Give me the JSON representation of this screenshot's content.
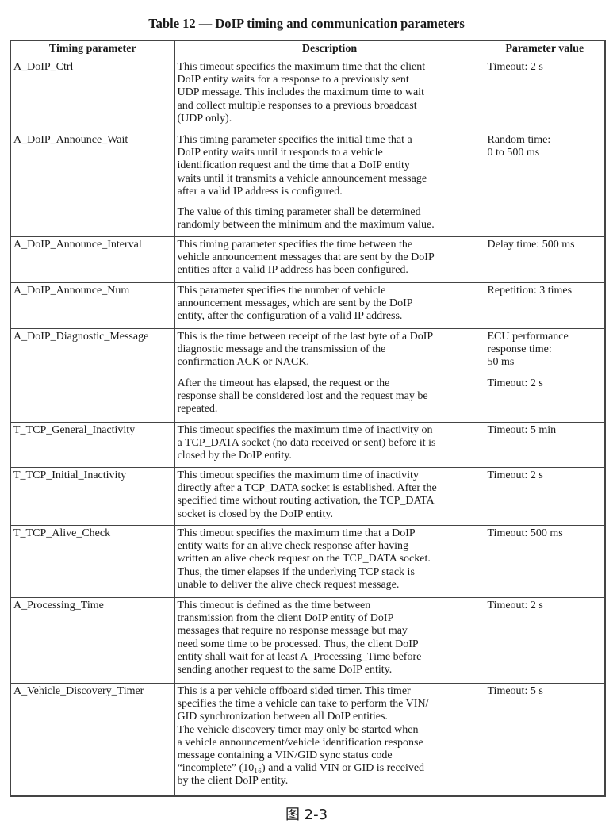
{
  "title": "Table 12 — DoIP timing and communication parameters",
  "headers": [
    "Timing parameter",
    "Description",
    "Parameter value"
  ],
  "rows": [
    {
      "param": "A_DoIP_Ctrl",
      "desc": [
        [
          "This timeout specifies the maximum time that the client",
          "DoIP entity waits for a response to a previously sent",
          "UDP message. This includes the maximum time to wait",
          "and collect multiple responses to a previous broadcast",
          "(UDP only)."
        ]
      ],
      "value": [
        [
          "Timeout: 2 s"
        ]
      ]
    },
    {
      "param": "A_DoIP_Announce_Wait",
      "desc": [
        [
          "This timing parameter specifies the initial time that a",
          "DoIP entity waits until it responds to a vehicle",
          "identification request and the time that a DoIP entity",
          "waits until it transmits a vehicle announcement message",
          "after a valid IP address is configured."
        ],
        [
          "The value of this timing parameter shall be determined",
          "randomly between the minimum and the maximum value."
        ]
      ],
      "value": [
        [
          "Random time:",
          "0 to 500 ms"
        ]
      ]
    },
    {
      "param": "A_DoIP_Announce_Interval",
      "desc": [
        [
          "This timing parameter specifies the time between the",
          "vehicle announcement messages that are sent by the DoIP",
          "entities after a valid IP address has been configured."
        ]
      ],
      "value": [
        [
          "Delay time: 500 ms"
        ]
      ]
    },
    {
      "param": "A_DoIP_Announce_Num",
      "desc": [
        [
          "This parameter specifies the number of vehicle",
          "announcement messages, which are sent by the DoIP",
          "entity, after the configuration of a valid IP address."
        ]
      ],
      "value": [
        [
          "Repetition: 3 times"
        ]
      ]
    },
    {
      "param": "A_DoIP_Diagnostic_Message",
      "desc": [
        [
          "This is the time between receipt of the last byte of a DoIP",
          "diagnostic message and the transmission of the",
          "confirmation ACK or NACK."
        ],
        [
          "After the timeout has elapsed, the request or the",
          "response shall be considered lost and the request may be",
          "repeated."
        ]
      ],
      "value": [
        [
          "ECU performance",
          "response time:",
          "50 ms"
        ],
        [
          "Timeout: 2 s"
        ]
      ]
    },
    {
      "param": "T_TCP_General_Inactivity",
      "desc": [
        [
          "This timeout specifies the maximum time of inactivity on",
          "a TCP_DATA socket (no data received or sent) before it is",
          "closed by the DoIP entity."
        ]
      ],
      "value": [
        [
          "Timeout: 5 min"
        ]
      ]
    },
    {
      "param": "T_TCP_Initial_Inactivity",
      "desc": [
        [
          "This timeout specifies the maximum time of inactivity",
          "directly after a TCP_DATA socket is established. After the",
          "specified time without routing activation, the TCP_DATA",
          "socket is closed by the DoIP entity."
        ]
      ],
      "value": [
        [
          "Timeout: 2 s"
        ]
      ]
    },
    {
      "param": "T_TCP_Alive_Check",
      "desc": [
        [
          "This timeout specifies the maximum time that a DoIP",
          "entity waits for an alive check response after having",
          "written an alive check request on the TCP_DATA socket.",
          "Thus, the timer elapses if the underlying TCP stack is",
          "unable to deliver the alive check request message."
        ]
      ],
      "value": [
        [
          "Timeout: 500 ms"
        ]
      ]
    },
    {
      "param": "A_Processing_Time",
      "desc": [
        [
          "This timeout is defined as the time between",
          "transmission from the client DoIP entity of DoIP",
          "messages that require no response message but may",
          "need some time to be processed. Thus, the client DoIP",
          "entity shall wait for at least A_Processing_Time before",
          "sending another request to the same DoIP entity."
        ]
      ],
      "value": [
        [
          "Timeout: 2 s"
        ]
      ]
    },
    {
      "param": "A_Vehicle_Discovery_Timer",
      "desc": [
        [
          "This is a per vehicle offboard sided timer. This timer",
          "specifies the time a vehicle can take to perform the VIN/",
          "GID synchronization between all DoIP entities.",
          "The vehicle discovery timer may only be started when",
          "a vehicle announcement/vehicle identification response",
          "message containing a VIN/GID sync status code",
          "“incomplete” (10₁₆) and a valid VIN or GID is received",
          "by the client DoIP entity."
        ]
      ],
      "value": [
        [
          "Timeout: 5 s"
        ]
      ]
    }
  ],
  "caption": "图 2-3"
}
